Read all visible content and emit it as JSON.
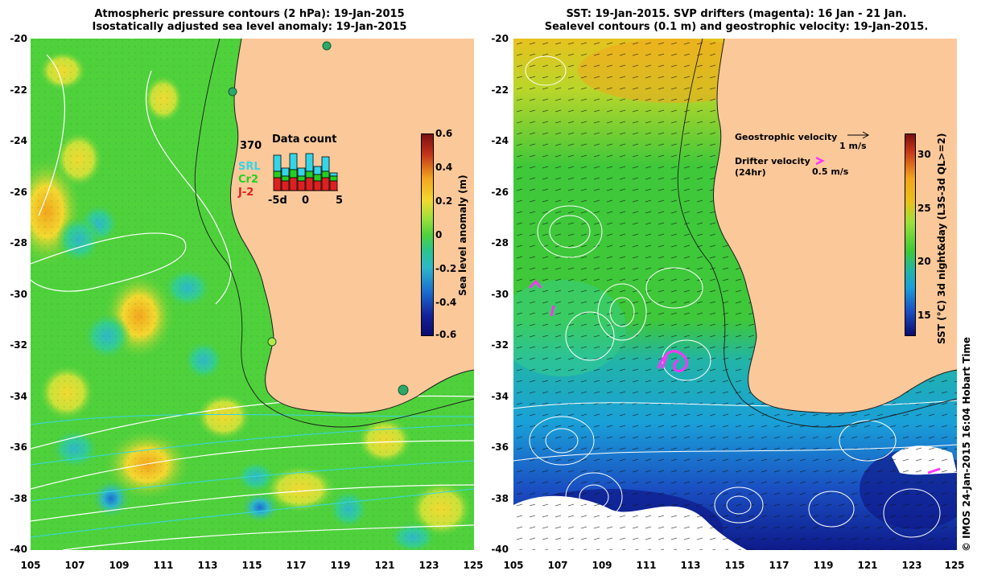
{
  "left": {
    "title_line1": "Atmospheric pressure contours (2 hPa): 19-Jan-2015",
    "title_line2": "Isostatically adjusted sea level anomaly: 19-Jan-2015",
    "colorbar_label": "Sea level anomaly (m)",
    "colorbar_ticks": [
      "0.6",
      "0.4",
      "0.2",
      "0",
      "-0.2",
      "-0.4",
      "-0.6"
    ],
    "colorbar_range": [
      -0.6,
      0.6
    ],
    "inset": {
      "title": "Data count",
      "max_count": "370",
      "legend": [
        "SRL",
        "Cr2",
        "J-2"
      ],
      "legend_colors": [
        "#33d6e8",
        "#22d022",
        "#e02020"
      ],
      "x_ticks": [
        "-5d",
        "0",
        "5"
      ]
    }
  },
  "right": {
    "title_line1": "SST: 19-Jan-2015. SVP drifters (magenta): 16 Jan - 21 Jan.",
    "title_line2": "Sealevel contours (0.1 m) and geostrophic velocity: 19-Jan-2015.",
    "colorbar_label": "SST (°C) 3d night&day (L3S-3d QL>=2)",
    "colorbar_ticks": [
      "30",
      "25",
      "20",
      "15"
    ],
    "colorbar_range": [
      13,
      32
    ],
    "geo_label": "Geostrophic velocity",
    "geo_scale": "1 m/s",
    "drifter_label_1": "Drifter velocity",
    "drifter_label_2": "(24hr)",
    "drifter_scale": "0.5 m/s"
  },
  "axes": {
    "lat_ticks": [
      "-20",
      "-22",
      "-24",
      "-26",
      "-28",
      "-30",
      "-32",
      "-34",
      "-36",
      "-38",
      "-40"
    ],
    "lon_ticks": [
      "105",
      "107",
      "109",
      "111",
      "113",
      "115",
      "117",
      "119",
      "121",
      "123",
      "125"
    ]
  },
  "credit": "© IMOS 24-Jan-2015 16:04 Hobart Time",
  "colors": {
    "land": "#fbc89a",
    "sla_green": "#4fd13c",
    "drifter": "#ff33ff"
  }
}
